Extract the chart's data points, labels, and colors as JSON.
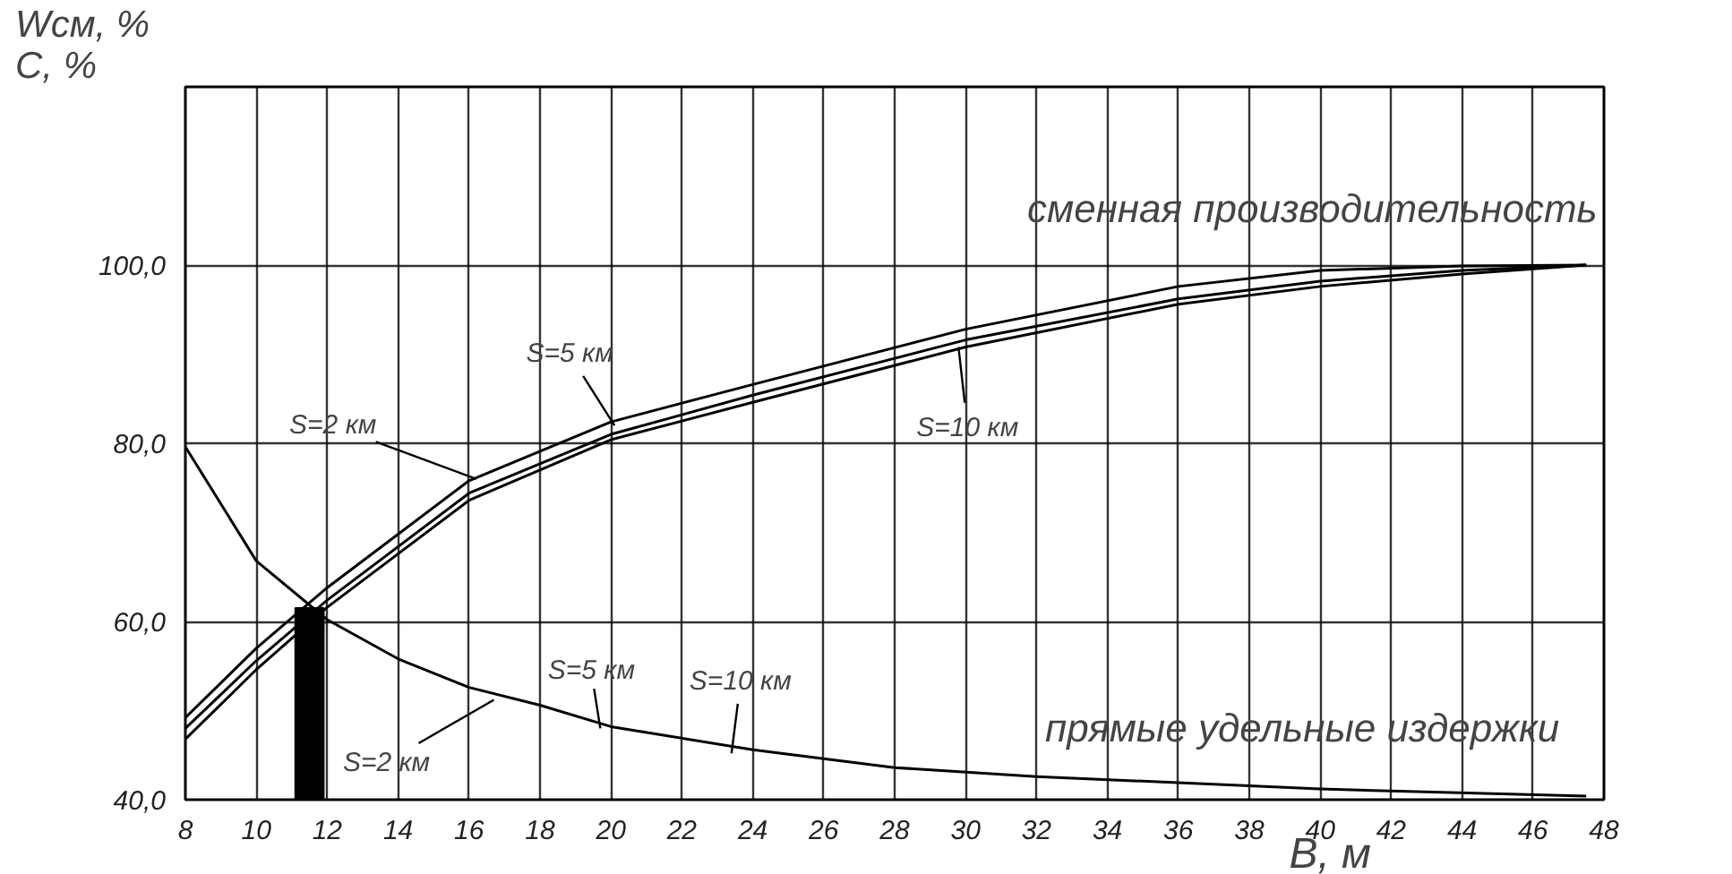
{
  "chart_data": {
    "type": "line",
    "ylabel": "Wсм, %\nС, %",
    "xlabel": "В, м",
    "xlim": [
      8,
      48
    ],
    "ylim": [
      40,
      120
    ],
    "xticks": [
      8,
      10,
      12,
      14,
      16,
      18,
      20,
      22,
      24,
      26,
      28,
      30,
      32,
      34,
      36,
      38,
      40,
      42,
      44,
      46,
      48
    ],
    "yticks": [
      {
        "value": 40,
        "label": "40,0"
      },
      {
        "value": 60,
        "label": "60,0"
      },
      {
        "value": 80,
        "label": "80,0"
      },
      {
        "value": 100,
        "label": "100,0"
      }
    ],
    "grid": true,
    "line_style": "solid",
    "marker": "none",
    "series": [
      {
        "color": "#000000",
        "x": [
          8,
          10,
          12,
          16,
          20,
          24,
          30,
          36,
          40,
          44,
          47.5
        ],
        "values": [
          49.2,
          57,
          63.8,
          75.8,
          82.4,
          86.6,
          92.8,
          97.6,
          99.4,
          99.9,
          100
        ]
      },
      {
        "color": "#000000",
        "x": [
          8,
          10,
          12,
          16,
          20,
          24,
          30,
          36,
          40,
          44,
          47.5
        ],
        "values": [
          48,
          55.6,
          62.4,
          74.4,
          81,
          85.4,
          91.6,
          96.2,
          98.2,
          99.4,
          100
        ]
      },
      {
        "color": "#000000",
        "x": [
          8,
          10,
          12,
          16,
          20,
          24,
          30,
          36,
          40,
          44,
          47.5
        ],
        "values": [
          46.8,
          54.6,
          61.6,
          73.6,
          80.4,
          84.6,
          90.8,
          95.6,
          97.6,
          99,
          100
        ]
      },
      {
        "color": "#000000",
        "x": [
          8,
          10,
          12,
          14,
          16,
          18,
          20,
          24,
          28,
          32,
          40,
          47.5
        ],
        "values": [
          79.6,
          66.8,
          60.2,
          55.8,
          52.6,
          50.6,
          48.2,
          45.6,
          43.6,
          42.6,
          41.2,
          40.4
        ]
      },
      {
        "type": "bar",
        "color": "#000000",
        "x": [
          11.5
        ],
        "base": [
          40
        ],
        "values": [
          21.5
        ]
      }
    ],
    "annotations": [
      {
        "text": "S=2 км",
        "x": 16.2,
        "y": 76
      },
      {
        "text": "S=5 км",
        "x": 20.1,
        "y": 82
      },
      {
        "text": "S=10 км",
        "x": 29.8,
        "y": 90.8
      },
      {
        "text": "S=2 км",
        "x": 16.7,
        "y": 51.2
      },
      {
        "text": "S=5 км",
        "x": 19.7,
        "y": 48
      },
      {
        "text": "S=10 км",
        "x": 23.4,
        "y": 45.2
      },
      "сменная производительность",
      "прямые удельные издержки"
    ]
  }
}
